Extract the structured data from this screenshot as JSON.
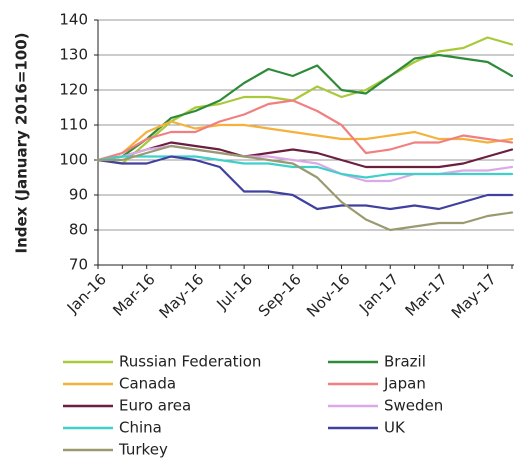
{
  "chart_data": {
    "type": "line",
    "y_label": "Index (January 2016=100)",
    "categories": [
      "Jan-16",
      null,
      "Mar-16",
      null,
      "May-16",
      null,
      "Jul-16",
      null,
      "Sep-16",
      null,
      "Nov-16",
      null,
      "Jan-17",
      null,
      "Mar-17",
      null,
      "May-17",
      null
    ],
    "ylim": [
      70,
      140
    ],
    "yticks": [
      70,
      80,
      90,
      100,
      110,
      120,
      130,
      140
    ],
    "grid": true,
    "series": [
      {
        "name": "Russian Federation",
        "color": "#a9c93b",
        "values": [
          100,
          99,
          105,
          111,
          115,
          116,
          118,
          118,
          117,
          121,
          118,
          120,
          124,
          128,
          131,
          132,
          135,
          133
        ]
      },
      {
        "name": "Brazil",
        "color": "#2e8b3a",
        "values": [
          100,
          101,
          106,
          112,
          114,
          117,
          122,
          126,
          124,
          127,
          120,
          119,
          124,
          129,
          130,
          129,
          128,
          124
        ]
      },
      {
        "name": "Canada",
        "color": "#f4b13c",
        "values": [
          100,
          102,
          108,
          111,
          109,
          110,
          110,
          109,
          108,
          107,
          106,
          106,
          107,
          108,
          106,
          106,
          105,
          106
        ]
      },
      {
        "name": "Japan",
        "color": "#f27f7f",
        "values": [
          100,
          102,
          106,
          108,
          108,
          111,
          113,
          116,
          117,
          114,
          110,
          102,
          103,
          105,
          105,
          107,
          106,
          105
        ]
      },
      {
        "name": "Euro area",
        "color": "#6b1f3e",
        "values": [
          100,
          101,
          103,
          105,
          104,
          103,
          101,
          102,
          103,
          102,
          100,
          98,
          98,
          98,
          98,
          99,
          101,
          103
        ]
      },
      {
        "name": "Sweden",
        "color": "#dba8e8",
        "values": [
          100,
          101,
          103,
          104,
          103,
          102,
          101,
          101,
          100,
          99,
          96,
          94,
          94,
          96,
          96,
          97,
          97,
          98
        ]
      },
      {
        "name": "China",
        "color": "#3fd0c9",
        "values": [
          100,
          101,
          101,
          101,
          101,
          100,
          99,
          99,
          98,
          98,
          96,
          95,
          96,
          96,
          96,
          96,
          96,
          96
        ]
      },
      {
        "name": "UK",
        "color": "#40409f",
        "values": [
          100,
          99,
          99,
          101,
          100,
          98,
          91,
          91,
          90,
          86,
          87,
          87,
          86,
          87,
          86,
          88,
          90,
          90
        ]
      },
      {
        "name": "Turkey",
        "color": "#9a9a70",
        "values": [
          100,
          100,
          102,
          104,
          103,
          102,
          101,
          100,
          99,
          95,
          88,
          83,
          80,
          81,
          82,
          82,
          84,
          85
        ]
      }
    ]
  }
}
